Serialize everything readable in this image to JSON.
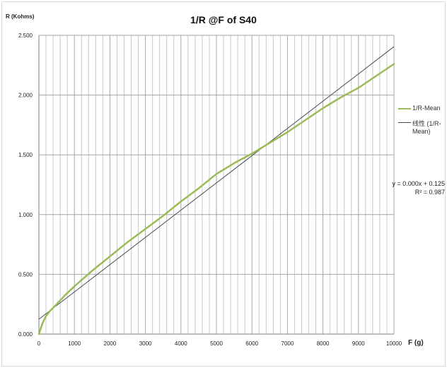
{
  "chart_data": {
    "type": "line",
    "title": "1/R @F of S40",
    "xlabel": "F (g)",
    "ylabel": "R (Kohms)",
    "xlim": [
      0,
      10000
    ],
    "ylim": [
      0,
      2.5
    ],
    "x_ticks": [
      "0",
      "1000",
      "2000",
      "3000",
      "4000",
      "5000",
      "6000",
      "7000",
      "8000",
      "9000",
      "10000"
    ],
    "y_ticks": [
      "0.000",
      "0.500",
      "1.000",
      "1.500",
      "2.000",
      "2.500"
    ],
    "grid": true,
    "legend_position": "right",
    "series": [
      {
        "name": "1/R-Mean",
        "color": "#9bbb59",
        "x": [
          0,
          100,
          200,
          300,
          500,
          750,
          1000,
          1500,
          2000,
          2500,
          3000,
          3500,
          4000,
          4500,
          5000,
          5500,
          6000,
          6500,
          7000,
          7500,
          8000,
          8500,
          9000,
          9500,
          10000
        ],
        "values": [
          0.0,
          0.09,
          0.15,
          0.19,
          0.25,
          0.33,
          0.4,
          0.53,
          0.65,
          0.77,
          0.88,
          0.99,
          1.11,
          1.22,
          1.34,
          1.43,
          1.51,
          1.6,
          1.69,
          1.79,
          1.89,
          1.98,
          2.06,
          2.16,
          2.26
        ]
      },
      {
        "name": "线性 (1/R-Mean)",
        "color": "#4a4a5a",
        "type": "trendline",
        "x": [
          0,
          10000
        ],
        "values": [
          0.125,
          2.405
        ]
      }
    ],
    "trendline_equation": "y = 0.000x + 0.125",
    "r_squared": "R² = 0.987"
  }
}
